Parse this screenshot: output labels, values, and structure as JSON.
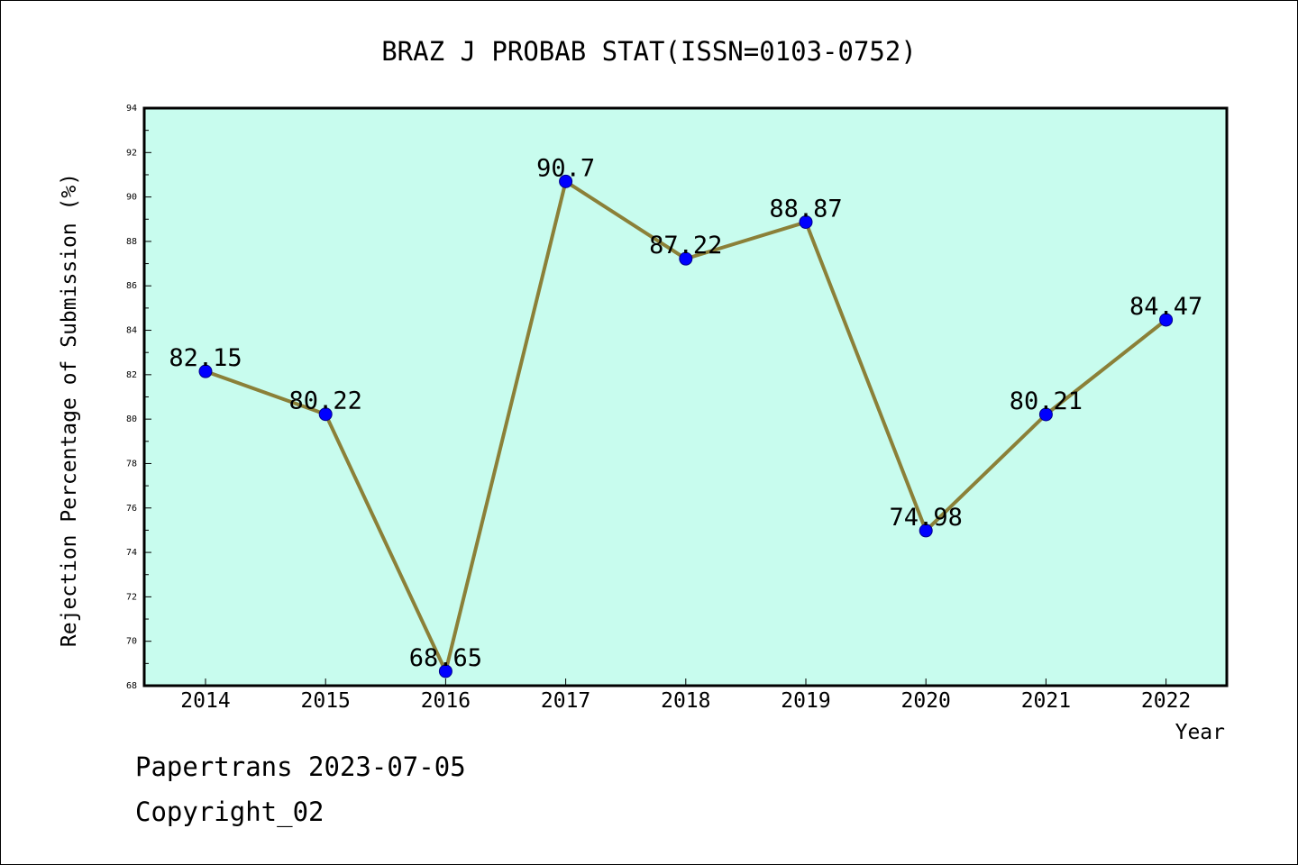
{
  "chart_data": {
    "type": "line",
    "title": "BRAZ J PROBAB STAT(ISSN=0103-0752)",
    "xlabel": "Year",
    "ylabel": "Rejection Percentage of Submission (%)",
    "categories": [
      "2014",
      "2015",
      "2016",
      "2017",
      "2018",
      "2019",
      "2020",
      "2021",
      "2022"
    ],
    "values": [
      82.15,
      80.22,
      68.65,
      90.7,
      87.22,
      88.87,
      74.98,
      80.21,
      84.47
    ],
    "data_labels": [
      "82.15",
      "80.22",
      "68.65",
      "90.7",
      "87.22",
      "88.87",
      "74.98",
      "80.21",
      "84.47"
    ],
    "ylim": [
      68,
      94
    ],
    "yticks": [
      68,
      70,
      72,
      74,
      76,
      78,
      80,
      82,
      84,
      86,
      88,
      90,
      92,
      94
    ],
    "grid": false,
    "colors": {
      "plot_background": "#c8fcee",
      "line": "#8b8038",
      "marker": "#0000ff"
    }
  },
  "footer": {
    "line1": "Papertrans 2023-07-05",
    "line2": "Copyright_02"
  }
}
